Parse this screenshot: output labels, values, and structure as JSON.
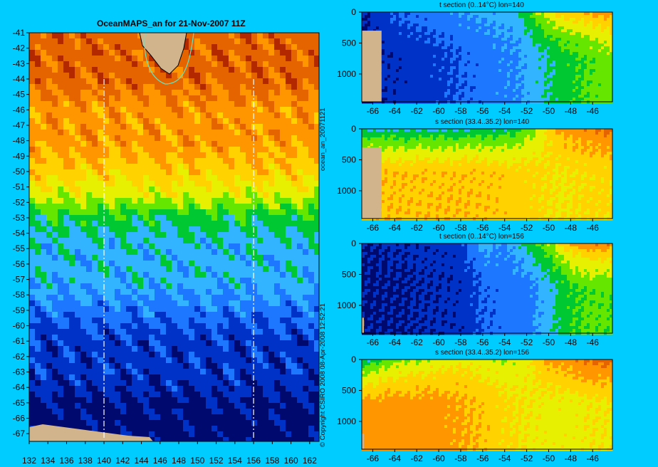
{
  "colors": {
    "background": "#00ccff",
    "land": "#d2b48c",
    "contour": "#5fe6c4",
    "section_line": "#ffffff",
    "scale": [
      "#000a6e",
      "#0032c8",
      "#1e78ff",
      "#32b4ff",
      "#00c832",
      "#64e600",
      "#e6f000",
      "#ffd200",
      "#ff9600",
      "#e66400",
      "#b42800",
      "#780000"
    ]
  },
  "map": {
    "title": "OceanMAPS_an for 21-Nov-2007 11Z",
    "side_label_top": "ocean_an_20071121",
    "side_label_bottom": "© Copyright CSIRO 2008  08-Apr-2008 12:52:21"
  },
  "chart_data": [
    {
      "type": "heatmap",
      "title": "OceanMAPS_an for 21-Nov-2007 11Z",
      "xlabel": "",
      "ylabel": "",
      "x_ticks": [
        "132",
        "134",
        "136",
        "138",
        "140",
        "142",
        "144",
        "146",
        "148",
        "150",
        "152",
        "154",
        "156",
        "158",
        "160",
        "162"
      ],
      "y_ticks": [
        "-41",
        "-42",
        "-43",
        "-44",
        "-45",
        "-46",
        "-47",
        "-48",
        "-49",
        "-50",
        "-51",
        "-52",
        "-53",
        "-54",
        "-55",
        "-56",
        "-57",
        "-58",
        "-59",
        "-60",
        "-61",
        "-62",
        "-63",
        "-64",
        "-65",
        "-66",
        "-67"
      ],
      "xlim": [
        132,
        163
      ],
      "ylim": [
        -67.5,
        -41
      ],
      "section_lines_lon": [
        140,
        156
      ],
      "lat_bands": [
        {
          "lat": -41.5,
          "level": 9
        },
        {
          "lat": -44,
          "level": 9
        },
        {
          "lat": -46,
          "level": 8
        },
        {
          "lat": -48,
          "level": 8
        },
        {
          "lat": -50,
          "level": 7
        },
        {
          "lat": -51.5,
          "level": 6
        },
        {
          "lat": -53,
          "level": 4
        },
        {
          "lat": -55,
          "level": 3
        },
        {
          "lat": -57,
          "level": 3
        },
        {
          "lat": -59,
          "level": 2
        },
        {
          "lat": -61,
          "level": 1
        },
        {
          "lat": -63,
          "level": 1
        },
        {
          "lat": -66,
          "level": 0
        },
        {
          "lat": -67.5,
          "level": 0
        }
      ]
    },
    {
      "type": "heatmap",
      "title": "t section (0..14°C) lon=140",
      "x_ticks": [
        "-66",
        "-64",
        "-62",
        "-60",
        "-58",
        "-56",
        "-54",
        "-52",
        "-50",
        "-48",
        "-46"
      ],
      "y_ticks": [
        "0",
        "500",
        "1000"
      ],
      "xlim": [
        -67,
        -44.2
      ],
      "ylim": [
        1450,
        0
      ],
      "range": [
        0,
        14
      ],
      "surface_profile": [
        [
          -67,
          0.5
        ],
        [
          -64,
          2
        ],
        [
          -60,
          3
        ],
        [
          -56,
          3.5
        ],
        [
          -53,
          4
        ],
        [
          -51,
          7
        ],
        [
          -49,
          9
        ],
        [
          -46,
          10
        ],
        [
          -44.2,
          11
        ]
      ],
      "deep_profile": [
        [
          -67,
          0.5
        ],
        [
          -64,
          1
        ],
        [
          -60,
          1.5
        ],
        [
          -56,
          2.5
        ],
        [
          -53,
          3
        ],
        [
          -51,
          4
        ],
        [
          -49,
          5
        ],
        [
          -46,
          6
        ],
        [
          -44.2,
          6.5
        ]
      ],
      "land_to_lon": -65.2
    },
    {
      "type": "heatmap",
      "title": "s section (33.4..35.2) lon=140",
      "x_ticks": [
        "-66",
        "-64",
        "-62",
        "-60",
        "-58",
        "-56",
        "-54",
        "-52",
        "-50",
        "-48",
        "-46"
      ],
      "y_ticks": [
        "0",
        "500",
        "1000"
      ],
      "xlim": [
        -67,
        -44.2
      ],
      "ylim": [
        1450,
        0
      ],
      "range": [
        33.4,
        35.2
      ],
      "surface_profile": [
        [
          -67,
          33.9
        ],
        [
          -64,
          33.9
        ],
        [
          -60,
          33.9
        ],
        [
          -56,
          33.95
        ],
        [
          -53,
          34.0
        ],
        [
          -51,
          34.3
        ],
        [
          -49,
          34.7
        ],
        [
          -46,
          34.8
        ],
        [
          -44.2,
          34.9
        ]
      ],
      "deep_profile": [
        [
          -67,
          34.6
        ],
        [
          -64,
          34.6
        ],
        [
          -60,
          34.6
        ],
        [
          -56,
          34.6
        ],
        [
          -53,
          34.55
        ],
        [
          -51,
          34.5
        ],
        [
          -49,
          34.45
        ],
        [
          -46,
          34.5
        ],
        [
          -44.2,
          34.5
        ]
      ],
      "land_to_lon": -65.2
    },
    {
      "type": "heatmap",
      "title": "t section (0..14°C) lon=156",
      "x_ticks": [
        "-66",
        "-64",
        "-62",
        "-60",
        "-58",
        "-56",
        "-54",
        "-52",
        "-50",
        "-48",
        "-46"
      ],
      "y_ticks": [
        "0",
        "500",
        "1000"
      ],
      "xlim": [
        -67,
        -44.2
      ],
      "ylim": [
        1450,
        0
      ],
      "range": [
        0,
        14
      ],
      "surface_profile": [
        [
          -67,
          0.5
        ],
        [
          -64,
          0.8
        ],
        [
          -60,
          1
        ],
        [
          -58,
          1.5
        ],
        [
          -56,
          4
        ],
        [
          -54,
          3
        ],
        [
          -52,
          5
        ],
        [
          -50,
          7
        ],
        [
          -48,
          10
        ],
        [
          -46,
          11
        ],
        [
          -44.2,
          11
        ]
      ],
      "deep_profile": [
        [
          -67,
          0.5
        ],
        [
          -64,
          0.5
        ],
        [
          -60,
          0.8
        ],
        [
          -58,
          1
        ],
        [
          -56,
          2
        ],
        [
          -54,
          2.5
        ],
        [
          -52,
          2.5
        ],
        [
          -50,
          4
        ],
        [
          -48,
          5.5
        ],
        [
          -46,
          6
        ],
        [
          -44.2,
          6
        ]
      ],
      "land_to_lon": -66.8
    },
    {
      "type": "heatmap",
      "title": "s section (33.4..35.2) lon=156",
      "x_ticks": [
        "-66",
        "-64",
        "-62",
        "-60",
        "-58",
        "-56",
        "-54",
        "-52",
        "-50",
        "-48",
        "-46"
      ],
      "y_ticks": [
        "0",
        "500",
        "1000"
      ],
      "xlim": [
        -67,
        -44.2
      ],
      "ylim": [
        1450,
        0
      ],
      "range": [
        33.4,
        35.2
      ],
      "surface_profile": [
        [
          -67,
          33.9
        ],
        [
          -64,
          34.2
        ],
        [
          -60,
          34.3
        ],
        [
          -58,
          34.4
        ],
        [
          -56,
          34.3
        ],
        [
          -54,
          34.3
        ],
        [
          -52,
          34.4
        ],
        [
          -50,
          34.7
        ],
        [
          -48,
          34.8
        ],
        [
          -46,
          34.9
        ],
        [
          -44.2,
          34.9
        ]
      ],
      "deep_profile": [
        [
          -67,
          34.7
        ],
        [
          -64,
          34.7
        ],
        [
          -60,
          34.7
        ],
        [
          -58,
          34.65
        ],
        [
          -56,
          34.6
        ],
        [
          -54,
          34.5
        ],
        [
          -52,
          34.45
        ],
        [
          -50,
          34.4
        ],
        [
          -48,
          34.4
        ],
        [
          -46,
          34.45
        ],
        [
          -44.2,
          34.45
        ]
      ],
      "land_to_lon": -66.8
    }
  ]
}
